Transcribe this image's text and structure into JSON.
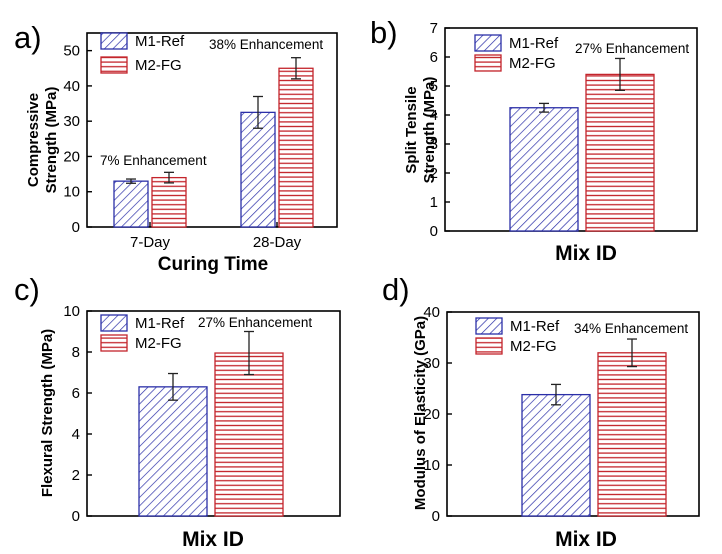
{
  "figure": {
    "series_colors": {
      "M1-Ref": "#2b2fa8",
      "M2-FG": "#c4242b"
    },
    "series_patterns": {
      "M1-Ref": "diagonal-hatch",
      "M2-FG": "horizontal-hatch"
    }
  },
  "chart_data": [
    {
      "panel_label": "a)",
      "type": "bar",
      "title": "",
      "categories": [
        "7-Day",
        "28-Day"
      ],
      "series": [
        {
          "name": "M1-Ref",
          "values": [
            13.0,
            32.5
          ],
          "errors": [
            0.6,
            4.5
          ]
        },
        {
          "name": "M2-FG",
          "values": [
            14.0,
            45.0
          ],
          "errors": [
            1.5,
            3.0
          ]
        }
      ],
      "xlabel": "Curing Time",
      "ylabel": [
        "Compressive",
        "Strength (MPa)"
      ],
      "ylim": [
        0,
        55
      ],
      "yticks": [
        0,
        10,
        20,
        30,
        40,
        50
      ],
      "legend": [
        "M1-Ref",
        "M2-FG"
      ],
      "annotations": [
        "7% Enhancement",
        "38% Enhancement"
      ]
    },
    {
      "panel_label": "b)",
      "type": "bar",
      "title": "",
      "categories": [
        ""
      ],
      "series": [
        {
          "name": "M1-Ref",
          "values": [
            4.25
          ],
          "errors": [
            0.15
          ]
        },
        {
          "name": "M2-FG",
          "values": [
            5.4
          ],
          "errors": [
            0.55
          ]
        }
      ],
      "xlabel": "Mix ID",
      "ylabel": [
        "Split Tensile",
        "Strength (MPa)"
      ],
      "ylim": [
        0,
        7
      ],
      "yticks": [
        0,
        1,
        2,
        3,
        4,
        5,
        6,
        7
      ],
      "legend": [
        "M1-Ref",
        "M2-FG"
      ],
      "annotations": [
        "27% Enhancement"
      ]
    },
    {
      "panel_label": "c)",
      "type": "bar",
      "title": "",
      "categories": [
        ""
      ],
      "series": [
        {
          "name": "M1-Ref",
          "values": [
            6.3
          ],
          "errors": [
            0.65
          ]
        },
        {
          "name": "M2-FG",
          "values": [
            7.95
          ],
          "errors": [
            1.05
          ]
        }
      ],
      "xlabel": "Mix ID",
      "ylabel": [
        "Flexural Strength (MPa)"
      ],
      "ylim": [
        0,
        10
      ],
      "yticks": [
        0,
        2,
        4,
        6,
        8,
        10
      ],
      "legend": [
        "M1-Ref",
        "M2-FG"
      ],
      "annotations": [
        "27% Enhancement"
      ]
    },
    {
      "panel_label": "d)",
      "type": "bar",
      "title": "",
      "categories": [
        ""
      ],
      "series": [
        {
          "name": "M1-Ref",
          "values": [
            23.8
          ],
          "errors": [
            2.0
          ]
        },
        {
          "name": "M2-FG",
          "values": [
            32.0
          ],
          "errors": [
            2.7
          ]
        }
      ],
      "xlabel": "Mix ID",
      "ylabel": [
        "Modulus of Elasticity (GPa)"
      ],
      "ylim": [
        0,
        40
      ],
      "yticks": [
        0,
        10,
        20,
        30,
        40
      ],
      "legend": [
        "M1-Ref",
        "M2-FG"
      ],
      "annotations": [
        "34% Enhancement"
      ]
    }
  ]
}
